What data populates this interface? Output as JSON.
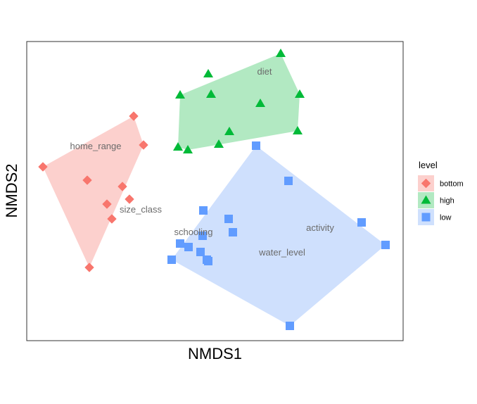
{
  "chart_data": {
    "type": "scatter",
    "xlabel": "NMDS1",
    "ylabel": "NMDS2",
    "xlim": [
      0,
      535
    ],
    "ylim": [
      -425,
      0
    ],
    "grid": false,
    "legend_position": "right",
    "legend": {
      "title": "level",
      "items": [
        {
          "label": "bottom",
          "color": "#F8766D",
          "shape": "diamond",
          "fill": "#FCD0CD"
        },
        {
          "label": "high",
          "color": "#00BA38",
          "shape": "triangle",
          "fill": "#B2E9C2"
        },
        {
          "label": "low",
          "color": "#619CFF",
          "shape": "square",
          "fill": "#CFE0FD"
        }
      ]
    },
    "series": [
      {
        "name": "bottom",
        "color": "#F8766D",
        "hull_fill": "#FCD0CD",
        "shape": "diamond",
        "points": [
          [
            152,
            -106
          ],
          [
            166,
            -147
          ],
          [
            23,
            -178
          ],
          [
            86,
            -197
          ],
          [
            136,
            -206
          ],
          [
            146,
            -224
          ],
          [
            114,
            -231
          ],
          [
            121,
            -252
          ],
          [
            89,
            -321
          ]
        ],
        "hull": [
          [
            152,
            -106
          ],
          [
            166,
            -147
          ],
          [
            89,
            -321
          ],
          [
            23,
            -178
          ]
        ]
      },
      {
        "name": "high",
        "color": "#00BA38",
        "hull_fill": "#B2E9C2",
        "shape": "triangle",
        "points": [
          [
            361,
            -17
          ],
          [
            258,
            -46
          ],
          [
            218,
            -76
          ],
          [
            262,
            -75
          ],
          [
            388,
            -75
          ],
          [
            332,
            -88
          ],
          [
            288,
            -128
          ],
          [
            385,
            -127
          ],
          [
            273,
            -146
          ],
          [
            215,
            -150
          ],
          [
            229,
            -154
          ]
        ],
        "hull": [
          [
            361,
            -17
          ],
          [
            388,
            -75
          ],
          [
            385,
            -127
          ],
          [
            229,
            -154
          ],
          [
            215,
            -150
          ],
          [
            218,
            -76
          ]
        ]
      },
      {
        "name": "low",
        "color": "#619CFF",
        "hull_fill": "#CFE0FD",
        "shape": "square",
        "points": [
          [
            326,
            -148
          ],
          [
            372,
            -198
          ],
          [
            251,
            -240
          ],
          [
            287,
            -252
          ],
          [
            476,
            -257
          ],
          [
            293,
            -271
          ],
          [
            250,
            -276
          ],
          [
            218,
            -287
          ],
          [
            230,
            -292
          ],
          [
            247,
            -299
          ],
          [
            510,
            -289
          ],
          [
            256,
            -310
          ],
          [
            258,
            -312
          ],
          [
            206,
            -310
          ],
          [
            374,
            -404
          ]
        ],
        "hull": [
          [
            326,
            -148
          ],
          [
            510,
            -289
          ],
          [
            374,
            -404
          ],
          [
            206,
            -310
          ]
        ]
      }
    ],
    "annotations": [
      {
        "text": "diet",
        "x": 338,
        "y": -43
      },
      {
        "text": "home_range",
        "x": 98,
        "y": -149
      },
      {
        "text": "size_class",
        "x": 162,
        "y": -239
      },
      {
        "text": "schooling",
        "x": 237,
        "y": -271
      },
      {
        "text": "activity",
        "x": 417,
        "y": -265
      },
      {
        "text": "water_level",
        "x": 363,
        "y": -300
      }
    ]
  }
}
